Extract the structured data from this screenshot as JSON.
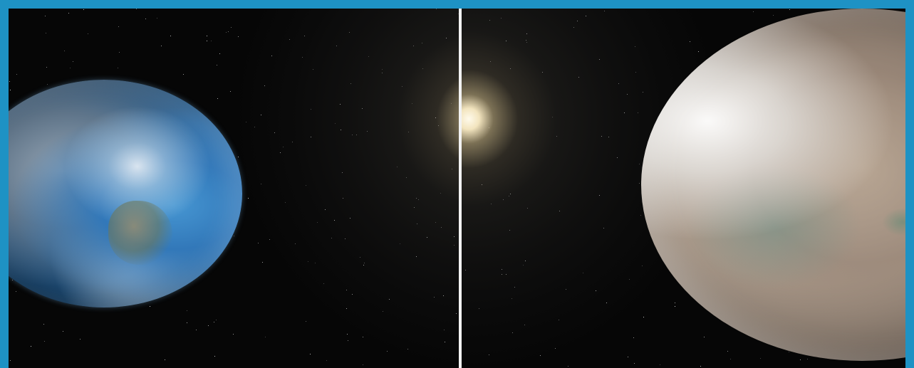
{
  "scene": {
    "left_panel": {
      "subject": "earth-icon"
    },
    "right_panel": {
      "subject": "exoplanet-icon"
    },
    "divider_color": "#f2f2f2",
    "border_color": "#1e92c4",
    "space_color": "#060606"
  }
}
